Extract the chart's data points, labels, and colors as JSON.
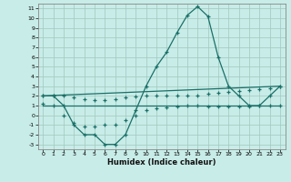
{
  "xlabel": "Humidex (Indice chaleur)",
  "background_color": "#c8ece8",
  "grid_color": "#a0c8be",
  "line_color": "#1a7068",
  "xlim": [
    -0.5,
    23.5
  ],
  "ylim": [
    -3.5,
    11.5
  ],
  "xticks": [
    0,
    1,
    2,
    3,
    4,
    5,
    6,
    7,
    8,
    9,
    10,
    11,
    12,
    13,
    14,
    15,
    16,
    17,
    18,
    19,
    20,
    21,
    22,
    23
  ],
  "yticks": [
    -3,
    -2,
    -1,
    0,
    1,
    2,
    3,
    4,
    5,
    6,
    7,
    8,
    9,
    10,
    11
  ],
  "main_x": [
    0,
    1,
    2,
    3,
    4,
    5,
    6,
    7,
    8,
    9,
    10,
    11,
    12,
    13,
    14,
    15,
    16,
    17,
    18,
    19,
    20,
    21,
    22,
    23
  ],
  "main_y": [
    2.0,
    2.0,
    1.0,
    -1.0,
    -2.0,
    -2.0,
    -3.0,
    -3.0,
    -2.0,
    0.5,
    3.0,
    5.0,
    6.5,
    8.5,
    10.3,
    11.2,
    10.2,
    6.0,
    3.0,
    2.0,
    1.0,
    1.0,
    2.0,
    3.0
  ],
  "upper_line_x": [
    0,
    23
  ],
  "upper_line_y": [
    2.0,
    3.0
  ],
  "upper_pts_x": [
    0,
    1,
    2,
    3,
    4,
    5,
    6,
    7,
    8,
    9,
    10,
    11,
    12,
    13,
    14,
    15,
    16,
    17,
    18,
    19,
    20,
    21,
    22,
    23
  ],
  "upper_pts_y": [
    2.0,
    2.0,
    2.0,
    1.8,
    1.7,
    1.6,
    1.6,
    1.7,
    1.8,
    1.9,
    2.0,
    2.0,
    2.0,
    2.0,
    2.0,
    2.0,
    2.2,
    2.3,
    2.4,
    2.5,
    2.6,
    2.7,
    2.8,
    3.0
  ],
  "lower_line_x": [
    0,
    23
  ],
  "lower_line_y": [
    1.0,
    1.0
  ],
  "lower_pts_x": [
    0,
    1,
    2,
    3,
    4,
    5,
    6,
    7,
    8,
    9,
    10,
    11,
    12,
    13,
    14,
    15,
    16,
    17,
    18,
    19,
    20,
    21,
    22,
    23
  ],
  "lower_pts_y": [
    1.2,
    1.0,
    0.0,
    -0.8,
    -1.2,
    -1.2,
    -1.0,
    -1.0,
    -0.5,
    0.0,
    0.5,
    0.7,
    0.8,
    0.9,
    1.0,
    1.0,
    0.9,
    0.9,
    0.9,
    0.9,
    0.9,
    1.0,
    1.0,
    1.0
  ]
}
